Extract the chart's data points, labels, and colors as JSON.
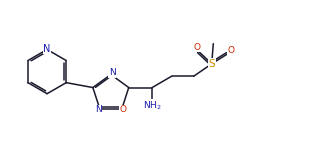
{
  "bg_color": "#ffffff",
  "bond_color": "#1a1a2e",
  "atom_colors": {
    "N": "#1a1aaa",
    "O": "#cc2200",
    "S": "#cc8800",
    "C": "#1a1a2e"
  },
  "figsize": [
    3.27,
    1.64
  ],
  "dpi": 100
}
